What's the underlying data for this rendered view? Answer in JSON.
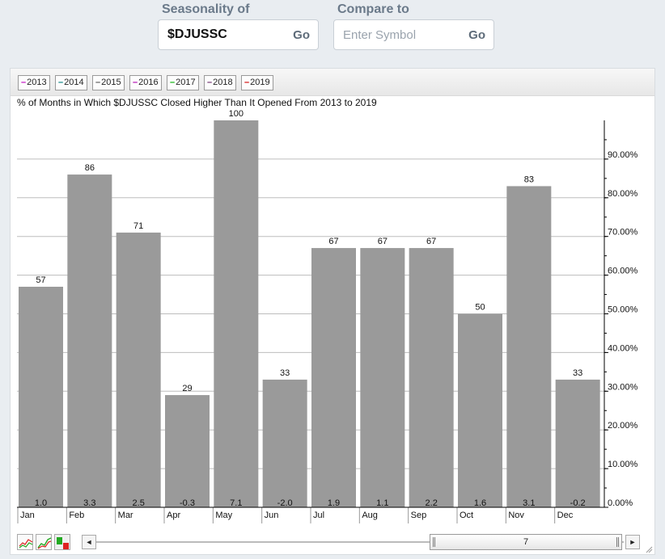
{
  "header": {
    "seasonality_label": "Seasonality of",
    "seasonality_value": "$DJUSSC",
    "seasonality_go": "Go",
    "compare_label": "Compare to",
    "compare_placeholder": "Enter Symbol",
    "compare_go": "Go"
  },
  "legend": [
    {
      "label": "2013",
      "color": "#c000c0"
    },
    {
      "label": "2014",
      "color": "#008080"
    },
    {
      "label": "2015",
      "color": "#555555"
    },
    {
      "label": "2016",
      "color": "#b000b0"
    },
    {
      "label": "2017",
      "color": "#00b000"
    },
    {
      "label": "2018",
      "color": "#6a2a6a"
    },
    {
      "label": "2019",
      "color": "#d00000"
    }
  ],
  "chart_data": {
    "type": "bar",
    "title": "% of Months in Which $DJUSSC Closed Higher Than It Opened From 2013 to 2019",
    "categories": [
      "Jan",
      "Feb",
      "Mar",
      "Apr",
      "May",
      "Jun",
      "Jul",
      "Aug",
      "Sep",
      "Oct",
      "Nov",
      "Dec"
    ],
    "values": [
      57,
      86,
      71,
      29,
      100,
      33,
      67,
      67,
      67,
      50,
      83,
      33
    ],
    "avg_change_labels": [
      "1.0",
      "3.3",
      "2.5",
      "-0.3",
      "7.1",
      "-2.0",
      "1.9",
      "1.1",
      "2.2",
      "1.6",
      "3.1",
      "-0.2"
    ],
    "yticks": [
      "0.00%",
      "10.00%",
      "20.00%",
      "30.00%",
      "40.00%",
      "50.00%",
      "60.00%",
      "70.00%",
      "80.00%",
      "90.00%"
    ],
    "ylim": [
      0,
      100
    ],
    "y_axis_side": "right",
    "grid": true,
    "bar_color": "#9a9a9a"
  },
  "scrollbar": {
    "thumb_label": "7",
    "left_arrow": "◄",
    "right_arrow": "►"
  },
  "toolbar_icons": [
    "line-chart-icon",
    "candlestick-chart-icon",
    "bar-chart-icon"
  ]
}
